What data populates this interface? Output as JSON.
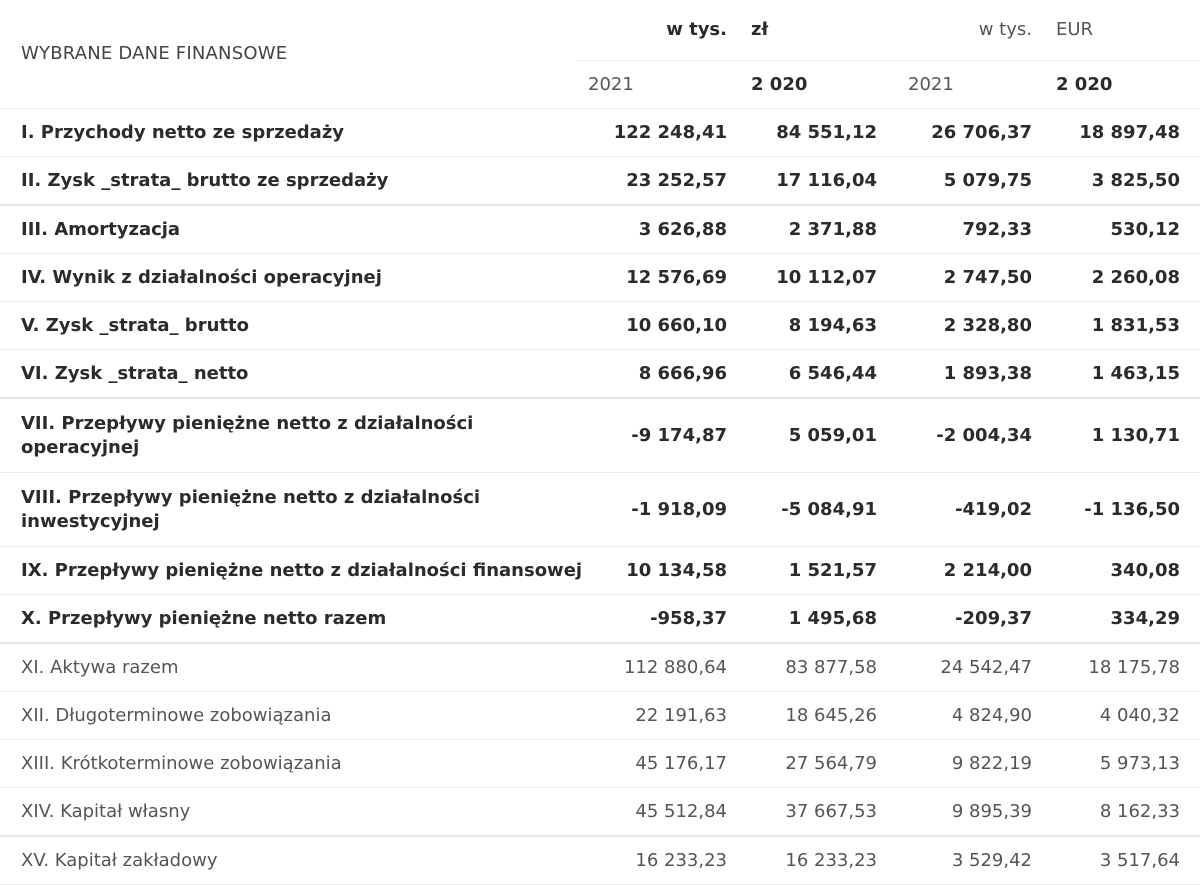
{
  "caption": "WYBRANE DANE FINANSOWE",
  "header": {
    "pln_unit_prefix": "w tys.",
    "pln_unit_currency": "zł",
    "eur_unit_prefix": "w tys.",
    "eur_unit_currency": "EUR",
    "years": [
      "2021",
      "2 020",
      "2021",
      "2 020"
    ]
  },
  "rows": [
    {
      "label": "I. Przychody netto ze sprzedaży",
      "values": [
        "122 248,41",
        "84 551,12",
        "26 706,37",
        "18 897,48"
      ],
      "bold": true
    },
    {
      "label": "II. Zysk _strata_ brutto ze sprzedaży",
      "values": [
        "23 252,57",
        "17 116,04",
        "5 079,75",
        "3 825,50"
      ],
      "bold": true
    },
    {
      "label": "III. Amortyzacja",
      "values": [
        "3 626,88",
        "2 371,88",
        "792,33",
        "530,12"
      ],
      "bold": true
    },
    {
      "label": "IV. Wynik z działalności operacyjnej",
      "values": [
        "12 576,69",
        "10 112,07",
        "2 747,50",
        "2 260,08"
      ],
      "bold": true
    },
    {
      "label": "V. Zysk _strata_ brutto",
      "values": [
        "10 660,10",
        "8 194,63",
        "2 328,80",
        "1 831,53"
      ],
      "bold": true
    },
    {
      "label": "VI. Zysk _strata_ netto",
      "values": [
        "8 666,96",
        "6 546,44",
        "1 893,38",
        "1 463,15"
      ],
      "bold": true
    },
    {
      "label": "VII. Przepływy pieniężne netto z działalności operacyjnej",
      "values": [
        "-9 174,87",
        "5 059,01",
        "-2 004,34",
        "1 130,71"
      ],
      "bold": true
    },
    {
      "label": "VIII. Przepływy pieniężne netto z działalności inwestycyjnej",
      "values": [
        "-1 918,09",
        "-5 084,91",
        "-419,02",
        "-1 136,50"
      ],
      "bold": true
    },
    {
      "label": "IX. Przepływy pieniężne netto z działalności finansowej",
      "values": [
        "10 134,58",
        "1 521,57",
        "2 214,00",
        "340,08"
      ],
      "bold": true
    },
    {
      "label": "X. Przepływy pieniężne netto razem",
      "values": [
        "-958,37",
        "1 495,68",
        "-209,37",
        "334,29"
      ],
      "bold": true
    },
    {
      "label": "XI. Aktywa razem",
      "values": [
        "112 880,64",
        "83 877,58",
        "24 542,47",
        "18 175,78"
      ],
      "bold": false
    },
    {
      "label": "XII. Długoterminowe zobowiązania",
      "values": [
        "22 191,63",
        "18 645,26",
        "4 824,90",
        "4 040,32"
      ],
      "bold": false
    },
    {
      "label": "XIII. Krótkoterminowe zobowiązania",
      "values": [
        "45 176,17",
        "27 564,79",
        "9 822,19",
        "5 973,13"
      ],
      "bold": false
    },
    {
      "label": "XIV. Kapitał własny",
      "values": [
        "45 512,84",
        "37 667,53",
        "9 895,39",
        "8 162,33"
      ],
      "bold": false
    },
    {
      "label": "XV. Kapitał zakładowy",
      "values": [
        "16 233,23",
        "16 233,23",
        "3 529,42",
        "3 517,64"
      ],
      "bold": false
    }
  ]
}
